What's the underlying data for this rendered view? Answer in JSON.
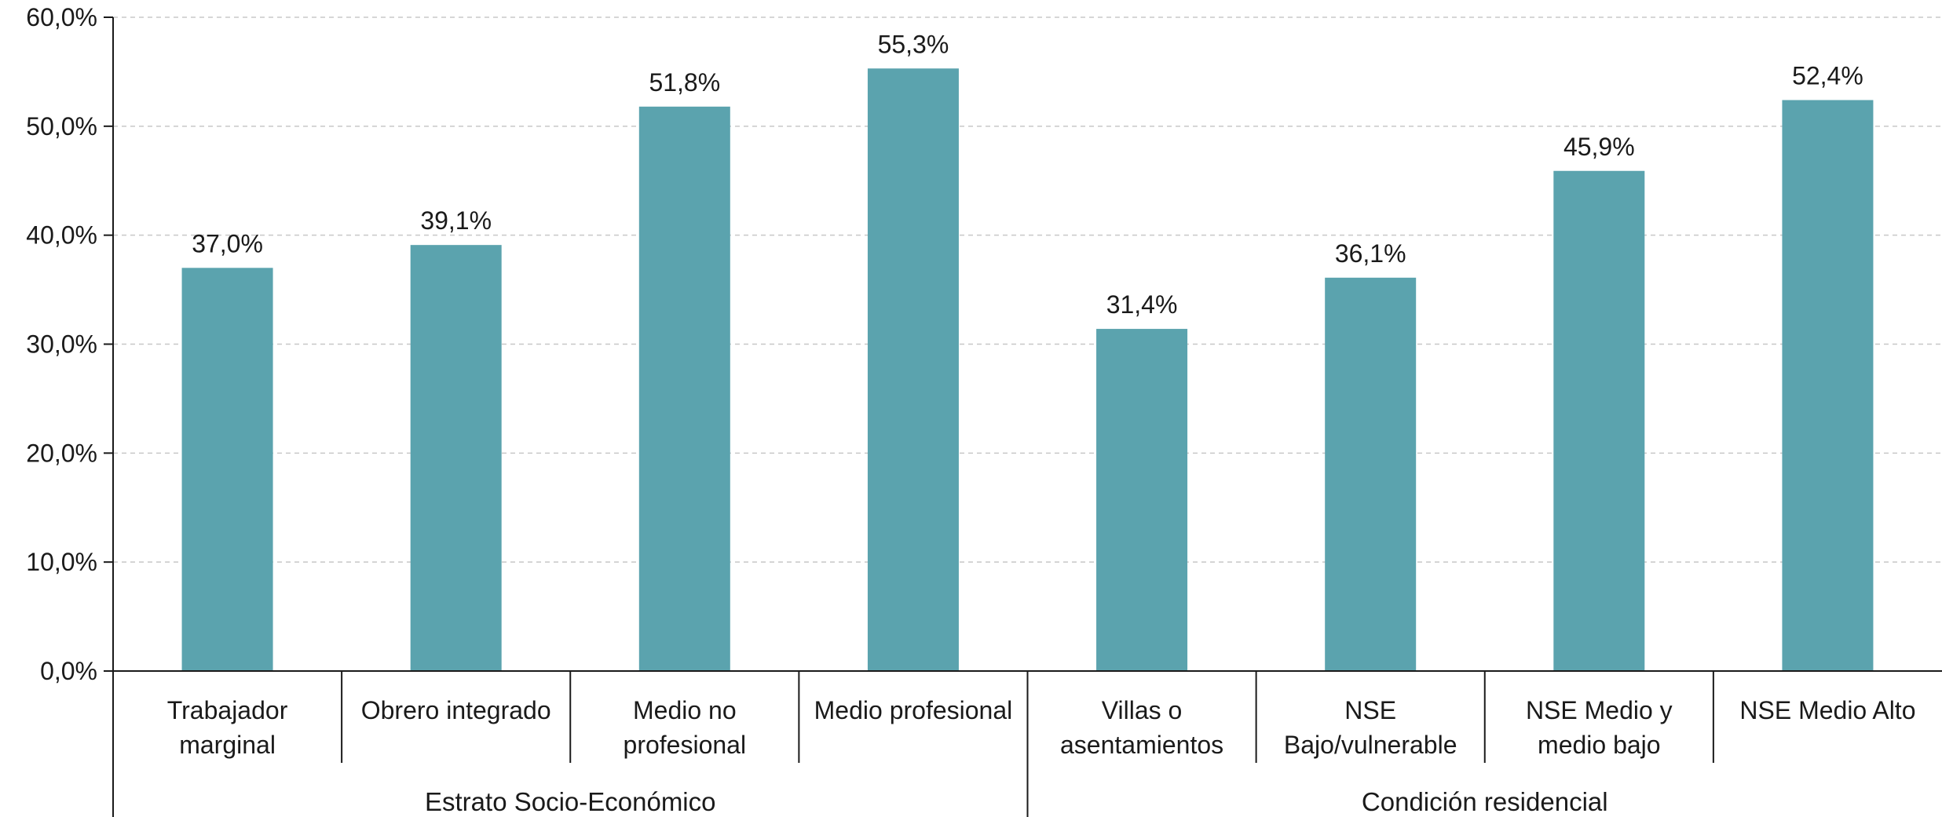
{
  "chart_data": {
    "type": "bar",
    "categories": [
      [
        "Trabajador",
        "marginal"
      ],
      [
        "Obrero integrado"
      ],
      [
        "Medio no",
        "profesional"
      ],
      [
        "Medio profesional"
      ],
      [
        "Villas o",
        "asentamientos"
      ],
      [
        "NSE",
        "Bajo/vulnerable"
      ],
      [
        "NSE Medio y",
        "medio bajo"
      ],
      [
        "NSE Medio Alto"
      ]
    ],
    "values": [
      37.0,
      39.1,
      51.8,
      55.3,
      31.4,
      36.1,
      45.9,
      52.4
    ],
    "data_labels": [
      "37,0%",
      "39,1%",
      "51,8%",
      "55,3%",
      "31,4%",
      "36,1%",
      "45,9%",
      "52,4%"
    ],
    "groups": [
      {
        "label": "Estrato Socio-Económico",
        "count": 4
      },
      {
        "label": "Condición residencial",
        "count": 4
      }
    ],
    "ylim": [
      0,
      60
    ],
    "yticks": [
      0,
      10,
      20,
      30,
      40,
      50,
      60
    ],
    "ytick_labels": [
      "0,0%",
      "10,0%",
      "20,0%",
      "30,0%",
      "40,0%",
      "50,0%",
      "60,0%"
    ],
    "title": "",
    "xlabel": "",
    "ylabel": "",
    "grid": true,
    "legend": "none",
    "bar_color": "#5ba3ae",
    "grid_color": "#c8c8c8",
    "axis_color": "#1a1a1a"
  }
}
